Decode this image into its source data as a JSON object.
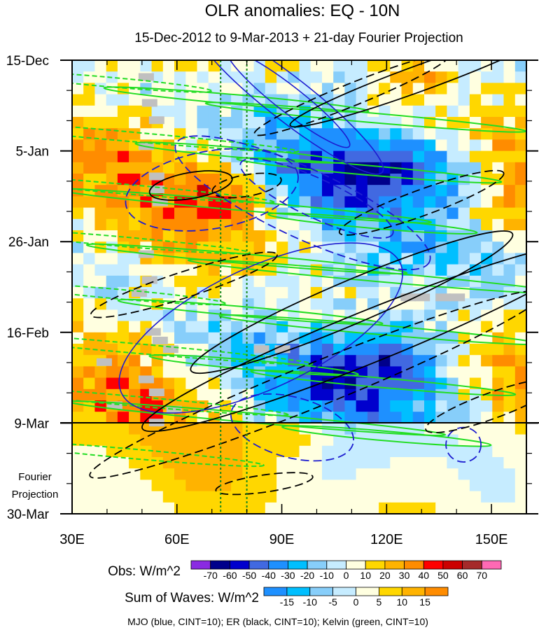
{
  "chart_data": {
    "type": "heatmap",
    "title": "OLR anomalies: EQ - 10N",
    "subtitle": "15-Dec-2012 to 9-Mar-2013 + 21-day Fourier Projection",
    "x_axis": {
      "label": "",
      "range": [
        30,
        160
      ],
      "ticks": [
        30,
        60,
        90,
        120,
        150
      ],
      "tick_labels": [
        "30E",
        "60E",
        "90E",
        "120E",
        "150E"
      ]
    },
    "y_axis": {
      "label": "",
      "range_days": [
        0,
        105
      ],
      "direction": "time increases downward",
      "ticks_days": [
        0,
        21,
        42,
        63,
        84,
        105
      ],
      "tick_labels": [
        "15-Dec",
        "5-Jan",
        "26-Jan",
        "16-Feb",
        "9-Mar",
        "30-Mar"
      ]
    },
    "observed_end_day": 84,
    "projection_label": [
      "Fourier",
      "Projection"
    ],
    "reference_longitudes": [
      72.5,
      80
    ],
    "obs_colorbar": {
      "label": "Obs: W/m^2",
      "levels": [
        -70,
        -60,
        -50,
        -40,
        -30,
        -20,
        -10,
        0,
        10,
        20,
        30,
        40,
        50,
        60,
        70
      ],
      "colors": [
        "#8a2be2",
        "#00008b",
        "#0000cd",
        "#4169e1",
        "#1e90ff",
        "#00bfff",
        "#87cefa",
        "#c6ecff",
        "#ffffe0",
        "#ffd700",
        "#ffb300",
        "#ff8c00",
        "#ff0000",
        "#cc0000",
        "#a52a2a",
        "#ff69b4"
      ]
    },
    "waves_colorbar": {
      "label": "Sum of Waves: W/m^2",
      "levels": [
        -15,
        -10,
        -5,
        0,
        5,
        10,
        15
      ],
      "colors": [
        "#1e90ff",
        "#00bfff",
        "#87cefa",
        "#c6ecff",
        "#ffffe0",
        "#ffd700",
        "#ffb300",
        "#ff8c00"
      ]
    },
    "contour_legend": "MJO (blue, CINT=10); ER (black, CINT=10); Kelvin (green, CINT=10)",
    "series": [
      {
        "name": "MJO",
        "color": "#1c1cd0",
        "cint": 10
      },
      {
        "name": "ER",
        "color": "#000000",
        "cint": 10
      },
      {
        "name": "Kelvin",
        "color": "#22dd22",
        "cint": 10
      }
    ]
  }
}
